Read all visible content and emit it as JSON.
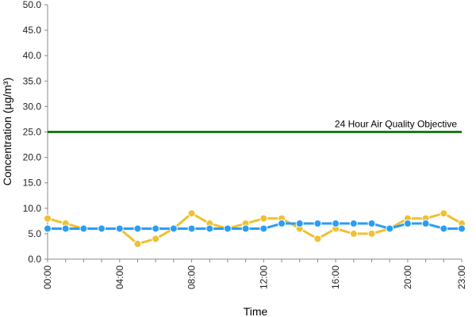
{
  "chart_data": {
    "type": "line",
    "xlabel": "Time",
    "ylabel": "Concentration (µg/m³)",
    "ylim": [
      0,
      50
    ],
    "y_ticks": [
      "0.0",
      "5.0",
      "10.0",
      "15.0",
      "20.0",
      "25.0",
      "30.0",
      "35.0",
      "40.0",
      "45.0",
      "50.0"
    ],
    "x_ticks": [
      "00:00",
      "04:00",
      "08:00",
      "12:00",
      "16:00",
      "20:00",
      "23:00"
    ],
    "x_tick_hours": [
      0,
      4,
      8,
      12,
      16,
      20,
      23
    ],
    "x": [
      0,
      1,
      2,
      3,
      4,
      5,
      6,
      7,
      8,
      9,
      10,
      11,
      12,
      13,
      14,
      15,
      16,
      17,
      18,
      19,
      20,
      21,
      22,
      23
    ],
    "series": [
      {
        "color": "#f0c030",
        "values": [
          8,
          7,
          6,
          6,
          6,
          3,
          4,
          6,
          9,
          7,
          6,
          7,
          8,
          8,
          6,
          4,
          6,
          5,
          5,
          6,
          8,
          8,
          9,
          7
        ]
      },
      {
        "color": "#2a9df4",
        "values": [
          6,
          6,
          6,
          6,
          6,
          6,
          6,
          6,
          6,
          6,
          6,
          6,
          6,
          7,
          7,
          7,
          7,
          7,
          7,
          6,
          7,
          7,
          6,
          6
        ]
      }
    ],
    "reference_line": {
      "value": 25,
      "label": "24 Hour Air Quality Objective",
      "color": "#1a7a1a"
    },
    "grid": false,
    "legend": "none"
  }
}
